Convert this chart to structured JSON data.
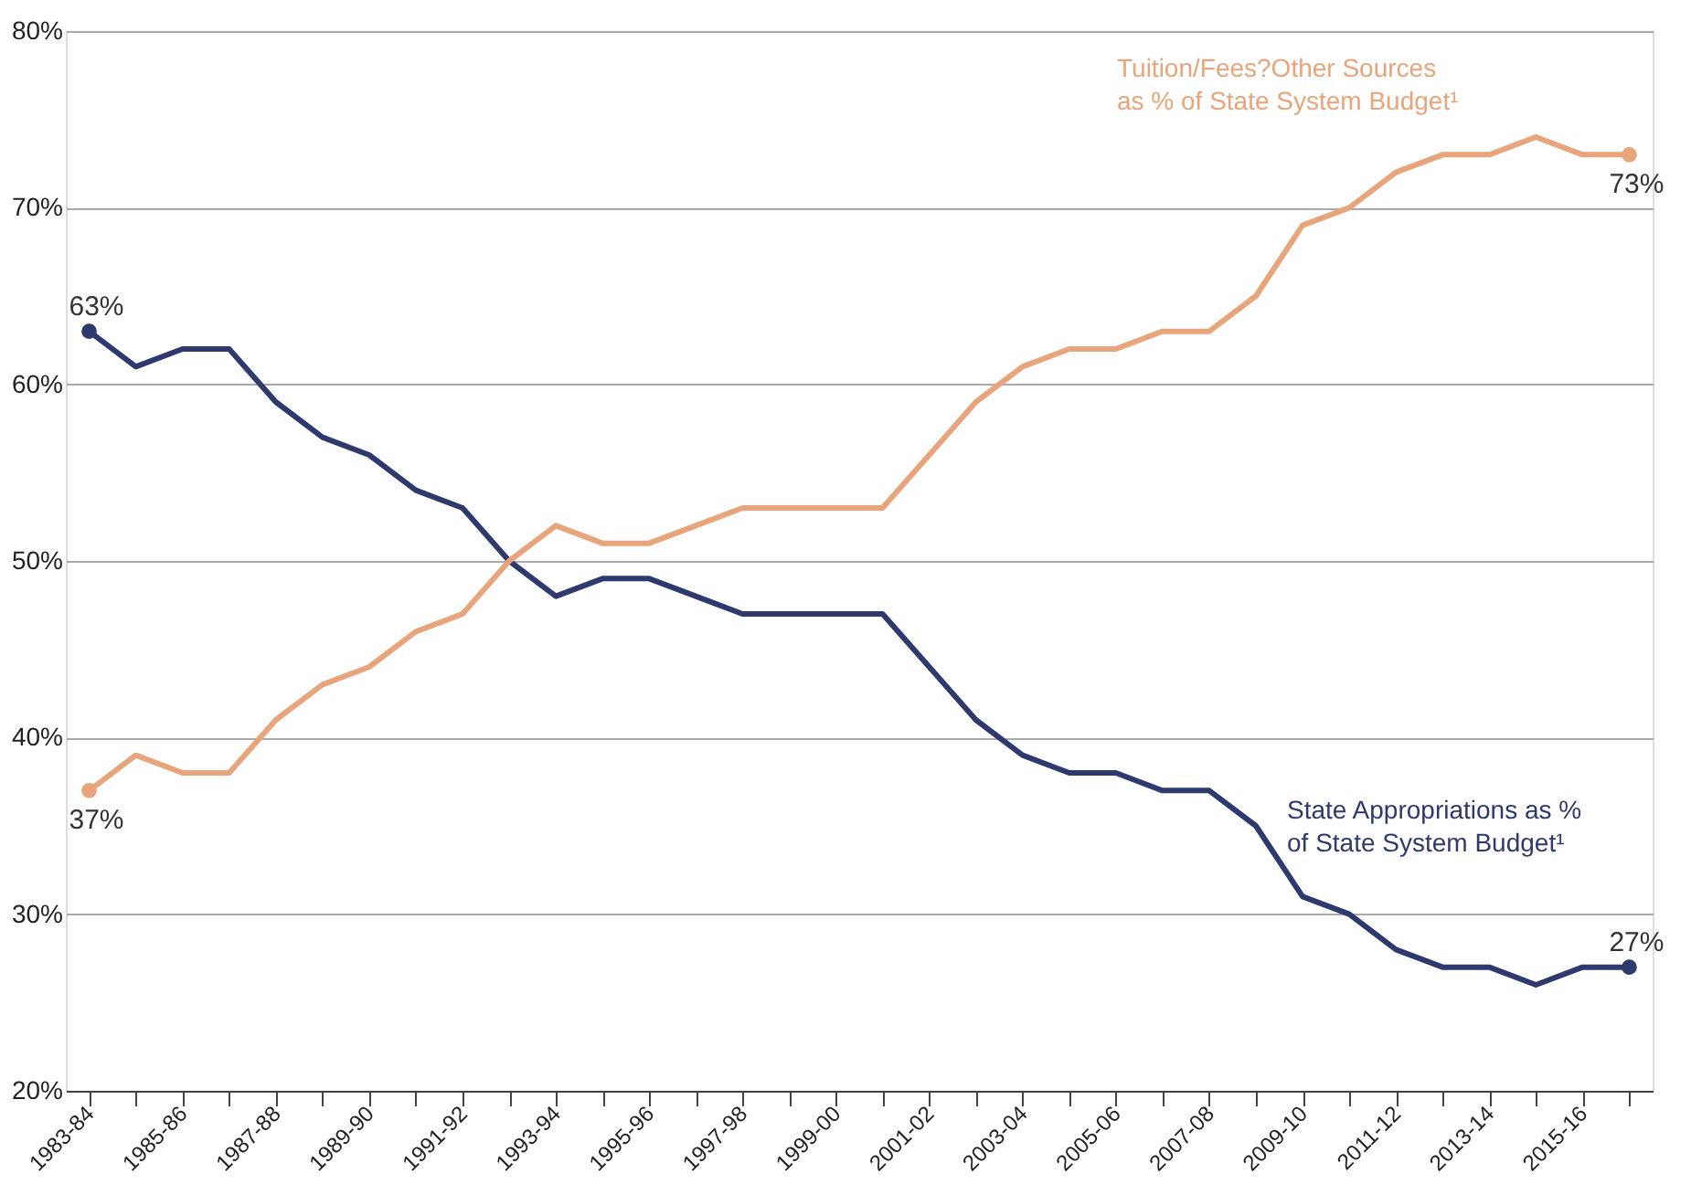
{
  "chart_data": {
    "type": "line",
    "categories": [
      "1983-84",
      null,
      "1985-86",
      null,
      "1987-88",
      null,
      "1989-90",
      null,
      "1991-92",
      null,
      "1993-94",
      null,
      "1995-96",
      null,
      "1997-98",
      null,
      "1999-00",
      null,
      "2001-02",
      null,
      "2003-04",
      null,
      "2005-06",
      null,
      "2007-08",
      null,
      "2009-10",
      null,
      "2011-12",
      null,
      "2013-14",
      null,
      "2015-16",
      null
    ],
    "series": [
      {
        "name": "State Appropriations as % of State System Budget¹",
        "color": "#2e3a6e",
        "values": [
          63,
          61,
          62,
          62,
          59,
          57,
          56,
          54,
          53,
          50,
          48,
          49,
          49,
          48,
          47,
          47,
          47,
          47,
          44,
          41,
          39,
          38,
          38,
          37,
          37,
          35,
          31,
          30,
          28,
          27,
          27,
          26,
          27,
          27
        ],
        "value_labels": [
          "63%",
          null,
          null,
          null,
          null,
          null,
          null,
          null,
          null,
          null,
          null,
          null,
          null,
          null,
          null,
          null,
          null,
          null,
          null,
          null,
          null,
          null,
          null,
          null,
          null,
          null,
          null,
          null,
          null,
          null,
          null,
          null,
          null,
          "27%"
        ]
      },
      {
        "name": "Tuition/Fees?Other Sources as % of State System Budget¹",
        "color": "#e8a47a",
        "values": [
          37,
          39,
          38,
          38,
          41,
          43,
          44,
          46,
          47,
          50,
          52,
          51,
          51,
          52,
          53,
          53,
          53,
          53,
          56,
          59,
          61,
          62,
          62,
          63,
          63,
          65,
          69,
          70,
          72,
          73,
          73,
          74,
          73,
          73
        ],
        "value_labels": [
          "37%",
          null,
          null,
          null,
          null,
          null,
          null,
          null,
          null,
          null,
          null,
          null,
          null,
          null,
          null,
          null,
          null,
          null,
          null,
          null,
          null,
          null,
          null,
          null,
          null,
          null,
          null,
          null,
          null,
          null,
          null,
          null,
          null,
          "73%"
        ]
      }
    ],
    "ylim": [
      20,
      80
    ],
    "yticks": [
      {
        "value": 20,
        "label": "20%"
      },
      {
        "value": 30,
        "label": "30%"
      },
      {
        "value": 40,
        "label": "40%"
      },
      {
        "value": 50,
        "label": "50%"
      },
      {
        "value": 60,
        "label": "60%"
      },
      {
        "value": 70,
        "label": "70%"
      },
      {
        "value": 80,
        "label": "80%"
      }
    ],
    "grid": "y",
    "legend": false,
    "marker": "none",
    "line_style": "solid"
  }
}
